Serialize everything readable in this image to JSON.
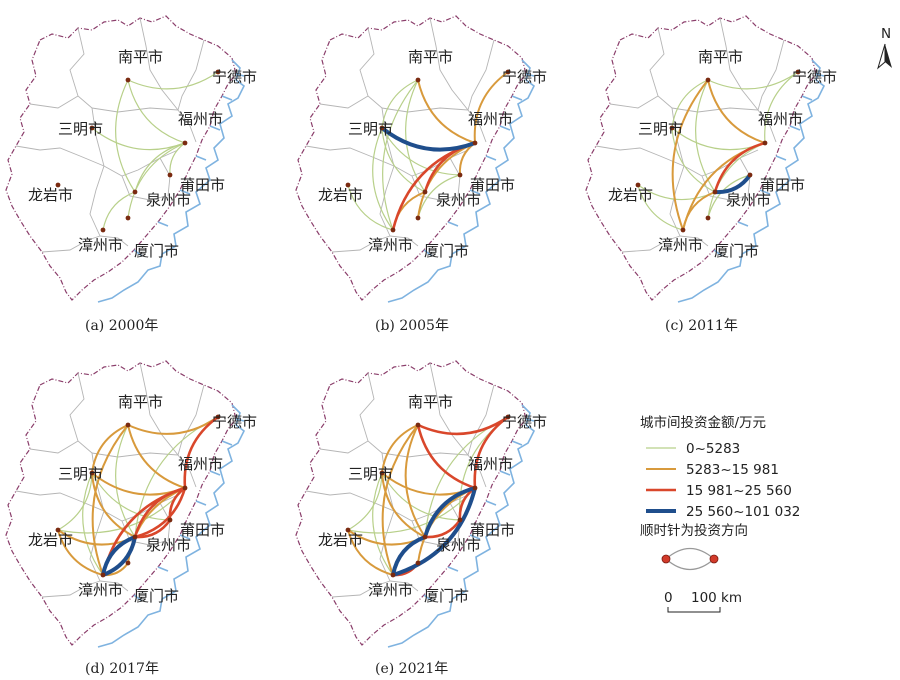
{
  "north_label": "N",
  "cities": [
    {
      "key": "np",
      "name": "南平市"
    },
    {
      "key": "nd",
      "name": "宁德市"
    },
    {
      "key": "sm",
      "name": "三明市"
    },
    {
      "key": "fz",
      "name": "福州市"
    },
    {
      "key": "ly",
      "name": "龙岩市"
    },
    {
      "key": "pt",
      "name": "莆田市"
    },
    {
      "key": "qz",
      "name": "泉州市"
    },
    {
      "key": "zz",
      "name": "漳州市"
    },
    {
      "key": "xm",
      "name": "厦门市"
    }
  ],
  "panels": [
    {
      "caption": "(a) 2000年",
      "links": [
        [
          "np",
          "fz",
          1
        ],
        [
          "sm",
          "fz",
          1
        ],
        [
          "fz",
          "qz",
          1
        ],
        [
          "fz",
          "pt",
          1
        ],
        [
          "qz",
          "zz",
          1
        ],
        [
          "np",
          "nd",
          1
        ],
        [
          "fz",
          "xm",
          1
        ],
        [
          "np",
          "qz",
          1
        ]
      ]
    },
    {
      "caption": "(b) 2005年",
      "links": [
        [
          "sm",
          "fz",
          4
        ],
        [
          "fz",
          "qz",
          3
        ],
        [
          "fz",
          "zz",
          3
        ],
        [
          "fz",
          "pt",
          2
        ],
        [
          "np",
          "fz",
          2
        ],
        [
          "nd",
          "fz",
          2
        ],
        [
          "fz",
          "xm",
          2
        ],
        [
          "qz",
          "zz",
          2
        ],
        [
          "np",
          "sm",
          1
        ],
        [
          "np",
          "qz",
          1
        ],
        [
          "sm",
          "qz",
          1
        ],
        [
          "sm",
          "zz",
          1
        ],
        [
          "ly",
          "zz",
          1
        ],
        [
          "np",
          "zz",
          1
        ],
        [
          "pt",
          "xm",
          1
        ],
        [
          "sm",
          "pt",
          1
        ]
      ]
    },
    {
      "caption": "(c) 2011年",
      "links": [
        [
          "qz",
          "pt",
          4
        ],
        [
          "fz",
          "qz",
          3
        ],
        [
          "fz",
          "zz",
          2
        ],
        [
          "np",
          "fz",
          2
        ],
        [
          "np",
          "zz",
          2
        ],
        [
          "nd",
          "fz",
          1
        ],
        [
          "sm",
          "fz",
          1
        ],
        [
          "fz",
          "xm",
          1
        ],
        [
          "np",
          "qz",
          1
        ],
        [
          "sm",
          "qz",
          1
        ],
        [
          "ly",
          "qz",
          1
        ],
        [
          "ly",
          "zz",
          1
        ],
        [
          "np",
          "nd",
          1
        ],
        [
          "np",
          "sm",
          1
        ],
        [
          "qz",
          "zz",
          2
        ],
        [
          "pt",
          "xm",
          1
        ]
      ]
    },
    {
      "caption": "(d) 2017年",
      "links": [
        [
          "qz",
          "zz",
          4
        ],
        [
          "zz",
          "qz",
          4
        ],
        [
          "fz",
          "qz",
          3
        ],
        [
          "qz",
          "fz",
          3
        ],
        [
          "fz",
          "pt",
          3
        ],
        [
          "nd",
          "fz",
          3
        ],
        [
          "qz",
          "pt",
          3
        ],
        [
          "fz",
          "zz",
          3
        ],
        [
          "np",
          "fz",
          2
        ],
        [
          "np",
          "nd",
          2
        ],
        [
          "np",
          "sm",
          2
        ],
        [
          "np",
          "zz",
          2
        ],
        [
          "sm",
          "fz",
          2
        ],
        [
          "sm",
          "qz",
          2
        ],
        [
          "ly",
          "qz",
          2
        ],
        [
          "ly",
          "zz",
          2
        ],
        [
          "zz",
          "xm",
          2
        ],
        [
          "fz",
          "xm",
          2
        ],
        [
          "sm",
          "zz",
          1
        ],
        [
          "ly",
          "fz",
          1
        ],
        [
          "np",
          "qz",
          1
        ],
        [
          "sm",
          "pt",
          1
        ],
        [
          "nd",
          "qz",
          1
        ],
        [
          "ly",
          "sm",
          1
        ]
      ]
    },
    {
      "caption": "(e) 2021年",
      "links": [
        [
          "qz",
          "zz",
          4
        ],
        [
          "fz",
          "qz",
          4
        ],
        [
          "zz",
          "fz",
          4
        ],
        [
          "fz",
          "pt",
          3
        ],
        [
          "nd",
          "fz",
          3
        ],
        [
          "np",
          "fz",
          3
        ],
        [
          "np",
          "nd",
          3
        ],
        [
          "qz",
          "pt",
          3
        ],
        [
          "zz",
          "xm",
          3
        ],
        [
          "np",
          "sm",
          2
        ],
        [
          "np",
          "zz",
          2
        ],
        [
          "sm",
          "fz",
          2
        ],
        [
          "sm",
          "qz",
          2
        ],
        [
          "ly",
          "qz",
          2
        ],
        [
          "ly",
          "zz",
          2
        ],
        [
          "fz",
          "xm",
          2
        ],
        [
          "np",
          "qz",
          2
        ],
        [
          "sm",
          "zz",
          1
        ],
        [
          "ly",
          "fz",
          1
        ],
        [
          "sm",
          "pt",
          1
        ],
        [
          "nd",
          "qz",
          1
        ],
        [
          "ly",
          "sm",
          1
        ],
        [
          "nd",
          "pt",
          1
        ]
      ]
    }
  ],
  "legend": {
    "title": "城市间投资金额/万元",
    "items": [
      {
        "label": "0~5283",
        "color": "#b8d08a",
        "width": 1.2
      },
      {
        "label": "5283~15 981",
        "color": "#d89a3c",
        "width": 2
      },
      {
        "label": "15 981~25 560",
        "color": "#d9472b",
        "width": 2.6
      },
      {
        "label": "25 560~101 032",
        "color": "#1f4e8c",
        "width": 4
      }
    ],
    "direction_note": "顺时针为投资方向",
    "scale_zero": "0",
    "scale_label": "100 km"
  }
}
